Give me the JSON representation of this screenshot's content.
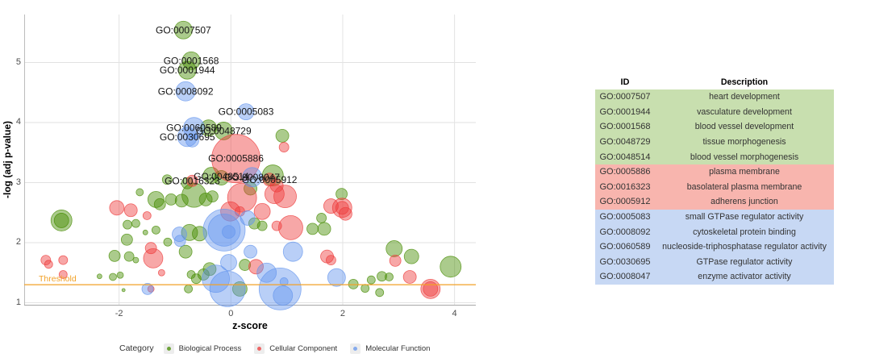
{
  "chart_data": {
    "type": "bubble",
    "title": "",
    "xlabel": "z-score",
    "ylabel": "-log (adj p-value)",
    "xlim": [
      -3.7,
      4.4
    ],
    "ylim": [
      0.87,
      5.8
    ],
    "x_ticks": [
      -2,
      0,
      2,
      4
    ],
    "y_ticks": [
      1,
      2,
      3,
      4,
      5
    ],
    "grid": "major",
    "legend_title": "Category",
    "threshold": {
      "value": 1.3,
      "label": "Threshold",
      "color": "#F2A127"
    },
    "categories": [
      {
        "key": "BP",
        "label": "Biological Process",
        "color": "#458B00"
      },
      {
        "key": "CC",
        "label": "Cellular Component",
        "color": "#EE3B3B"
      },
      {
        "key": "MF",
        "label": "Molecular Function",
        "color": "#6495ED"
      }
    ],
    "series": [
      {
        "name": "Biological Process",
        "color": "#458B00",
        "points": [
          [
            -0.85,
            5.54,
            11
          ],
          [
            -0.71,
            5.03,
            11
          ],
          [
            -0.78,
            4.87,
            11
          ],
          [
            -0.4,
            3.91,
            10
          ],
          [
            -0.13,
            3.86,
            11
          ],
          [
            0.92,
            3.78,
            8
          ],
          [
            -1.14,
            3.05,
            6
          ],
          [
            -0.78,
            2.99,
            7
          ],
          [
            -0.35,
            3.12,
            10
          ],
          [
            -0.17,
            3.08,
            9
          ],
          [
            0.75,
            3.12,
            13
          ],
          [
            0.35,
            2.9,
            8
          ],
          [
            -0.66,
            2.79,
            15
          ],
          [
            -0.45,
            2.72,
            8
          ],
          [
            -0.33,
            2.77,
            7
          ],
          [
            -0.88,
            2.7,
            8
          ],
          [
            -1.07,
            2.72,
            7
          ],
          [
            -3.03,
            2.37,
            13
          ],
          [
            -3.03,
            2.37,
            9
          ],
          [
            -1.63,
            2.84,
            4.5
          ],
          [
            -1.34,
            2.72,
            10
          ],
          [
            -1.27,
            2.64,
            7
          ],
          [
            -1.85,
            2.3,
            5.5
          ],
          [
            -1.7,
            2.32,
            5
          ],
          [
            -1.86,
            2.05,
            7
          ],
          [
            -1.53,
            2.17,
            3
          ],
          [
            -1.34,
            2.21,
            5
          ],
          [
            -1.13,
            2.01,
            5
          ],
          [
            -2.08,
            1.78,
            7
          ],
          [
            -1.82,
            1.77,
            6
          ],
          [
            -1.7,
            1.71,
            3.5
          ],
          [
            -2.35,
            1.44,
            3
          ],
          [
            -2.11,
            1.43,
            4.5
          ],
          [
            -1.98,
            1.46,
            4
          ],
          [
            -1.92,
            1.21,
            2
          ],
          [
            -0.74,
            2.17,
            10
          ],
          [
            -0.56,
            2.15,
            9
          ],
          [
            -0.81,
            1.85,
            8
          ],
          [
            0.42,
            2.32,
            7
          ],
          [
            0.56,
            2.28,
            6
          ],
          [
            -0.38,
            1.56,
            8
          ],
          [
            -0.49,
            1.47,
            7
          ],
          [
            -0.62,
            1.4,
            6
          ],
          [
            -0.71,
            1.47,
            5
          ],
          [
            -0.76,
            1.23,
            5
          ],
          [
            0.25,
            1.63,
            7
          ],
          [
            0.16,
            1.23,
            9
          ],
          [
            1.98,
            2.81,
            7
          ],
          [
            1.46,
            2.23,
            7
          ],
          [
            1.67,
            2.23,
            8
          ],
          [
            1.62,
            2.41,
            6
          ],
          [
            2.92,
            1.9,
            10
          ],
          [
            3.23,
            1.77,
            9
          ],
          [
            2.19,
            1.31,
            6
          ],
          [
            2.4,
            1.24,
            5
          ],
          [
            2.51,
            1.38,
            5
          ],
          [
            2.7,
            1.44,
            6
          ],
          [
            2.83,
            1.43,
            5
          ],
          [
            2.66,
            1.17,
            5
          ],
          [
            3.93,
            1.6,
            13
          ]
        ]
      },
      {
        "name": "Cellular Component",
        "color": "#EE3B3B",
        "points": [
          [
            0.09,
            3.4,
            30
          ],
          [
            -0.69,
            3.03,
            7
          ],
          [
            0.69,
            3.05,
            8
          ],
          [
            0.82,
            2.95,
            8
          ],
          [
            0.95,
            3.59,
            6
          ],
          [
            -3.31,
            1.71,
            6
          ],
          [
            -3.26,
            1.64,
            5
          ],
          [
            -3.0,
            1.71,
            5.5
          ],
          [
            -3.0,
            1.47,
            5
          ],
          [
            -2.04,
            2.58,
            9
          ],
          [
            -1.79,
            2.54,
            8
          ],
          [
            -1.5,
            2.45,
            5
          ],
          [
            -1.43,
            1.91,
            7
          ],
          [
            -1.39,
            1.74,
            12
          ],
          [
            -1.24,
            1.5,
            4
          ],
          [
            -1.43,
            1.23,
            4
          ],
          [
            0.2,
            2.75,
            18
          ],
          [
            -0.01,
            2.52,
            12
          ],
          [
            0.16,
            2.52,
            6
          ],
          [
            0.56,
            2.52,
            10
          ],
          [
            0.78,
            2.81,
            12
          ],
          [
            0.97,
            2.77,
            14
          ],
          [
            1.07,
            2.25,
            15
          ],
          [
            0.82,
            2.28,
            6
          ],
          [
            0.45,
            1.6,
            9
          ],
          [
            1.99,
            2.58,
            12
          ],
          [
            1.99,
            2.58,
            8
          ],
          [
            1.79,
            2.61,
            9
          ],
          [
            2.05,
            2.48,
            8
          ],
          [
            1.72,
            1.77,
            8
          ],
          [
            1.79,
            1.71,
            6
          ],
          [
            2.94,
            1.7,
            7
          ],
          [
            3.2,
            1.43,
            8
          ],
          [
            3.57,
            1.23,
            12
          ],
          [
            3.57,
            1.23,
            9
          ]
        ]
      },
      {
        "name": "Molecular Function",
        "color": "#6495ED",
        "points": [
          [
            -0.81,
            4.52,
            12
          ],
          [
            0.27,
            4.18,
            10
          ],
          [
            -0.66,
            3.91,
            13
          ],
          [
            -0.78,
            3.76,
            12
          ],
          [
            -0.69,
            3.7,
            8
          ],
          [
            0.38,
            3.09,
            12
          ],
          [
            -0.12,
            2.21,
            26
          ],
          [
            -0.12,
            2.21,
            20
          ],
          [
            -0.04,
            2.18,
            8
          ],
          [
            -0.92,
            2.14,
            9
          ],
          [
            -0.91,
            2.03,
            7
          ],
          [
            0.3,
            2.41,
            9
          ],
          [
            0.35,
            1.85,
            8
          ],
          [
            -0.04,
            1.67,
            10
          ],
          [
            -0.27,
            1.4,
            17
          ],
          [
            -0.06,
            1.23,
            22
          ],
          [
            0.64,
            1.5,
            12
          ],
          [
            0.88,
            1.23,
            26
          ],
          [
            0.93,
            1.12,
            12
          ],
          [
            0.95,
            1.35,
            5
          ],
          [
            1.11,
            1.85,
            12
          ],
          [
            1.89,
            1.42,
            11
          ],
          [
            -1.49,
            1.23,
            7
          ]
        ]
      }
    ],
    "labels": [
      {
        "id": "GO:0007507",
        "x": -0.85,
        "y": 5.54
      },
      {
        "id": "GO:0001568",
        "x": -0.71,
        "y": 5.03
      },
      {
        "id": "GO:0001944",
        "x": -0.78,
        "y": 4.87
      },
      {
        "id": "GO:0008092",
        "x": -0.81,
        "y": 4.52
      },
      {
        "id": "GO:0005083",
        "x": 0.27,
        "y": 4.18
      },
      {
        "id": "GO:0060589",
        "x": -0.66,
        "y": 3.91
      },
      {
        "id": "GO:0048729",
        "x": -0.13,
        "y": 3.86
      },
      {
        "id": "GO:0030695",
        "x": -0.78,
        "y": 3.76
      },
      {
        "id": "GO:0005886",
        "x": 0.09,
        "y": 3.4
      },
      {
        "id": "GO:0048514",
        "x": -0.17,
        "y": 3.1
      },
      {
        "id": "GO:0008047",
        "x": 0.38,
        "y": 3.09
      },
      {
        "id": "GO:0005912",
        "x": 0.69,
        "y": 3.05
      },
      {
        "id": "GO:0016323",
        "x": -0.69,
        "y": 3.03
      }
    ]
  },
  "table": {
    "columns": [
      "ID",
      "Description"
    ],
    "row_colors": {
      "BP": "#C8DFAF",
      "CC": "#F8B5AE",
      "MF": "#C7D8F4"
    },
    "rows": [
      {
        "id": "GO:0007507",
        "description": "heart development",
        "category": "BP"
      },
      {
        "id": "GO:0001944",
        "description": "vasculature development",
        "category": "BP"
      },
      {
        "id": "GO:0001568",
        "description": "blood vessel development",
        "category": "BP"
      },
      {
        "id": "GO:0048729",
        "description": "tissue morphogenesis",
        "category": "BP"
      },
      {
        "id": "GO:0048514",
        "description": "blood vessel morphogenesis",
        "category": "BP"
      },
      {
        "id": "GO:0005886",
        "description": "plasma membrane",
        "category": "CC"
      },
      {
        "id": "GO:0016323",
        "description": "basolateral plasma membrane",
        "category": "CC"
      },
      {
        "id": "GO:0005912",
        "description": "adherens junction",
        "category": "CC"
      },
      {
        "id": "GO:0005083",
        "description": "small GTPase regulator activity",
        "category": "MF"
      },
      {
        "id": "GO:0008092",
        "description": "cytoskeletal protein binding",
        "category": "MF"
      },
      {
        "id": "GO:0060589",
        "description": "nucleoside-triphosphatase regulator activity",
        "category": "MF"
      },
      {
        "id": "GO:0030695",
        "description": "GTPase regulator activity",
        "category": "MF"
      },
      {
        "id": "GO:0008047",
        "description": "enzyme activator activity",
        "category": "MF"
      }
    ]
  }
}
